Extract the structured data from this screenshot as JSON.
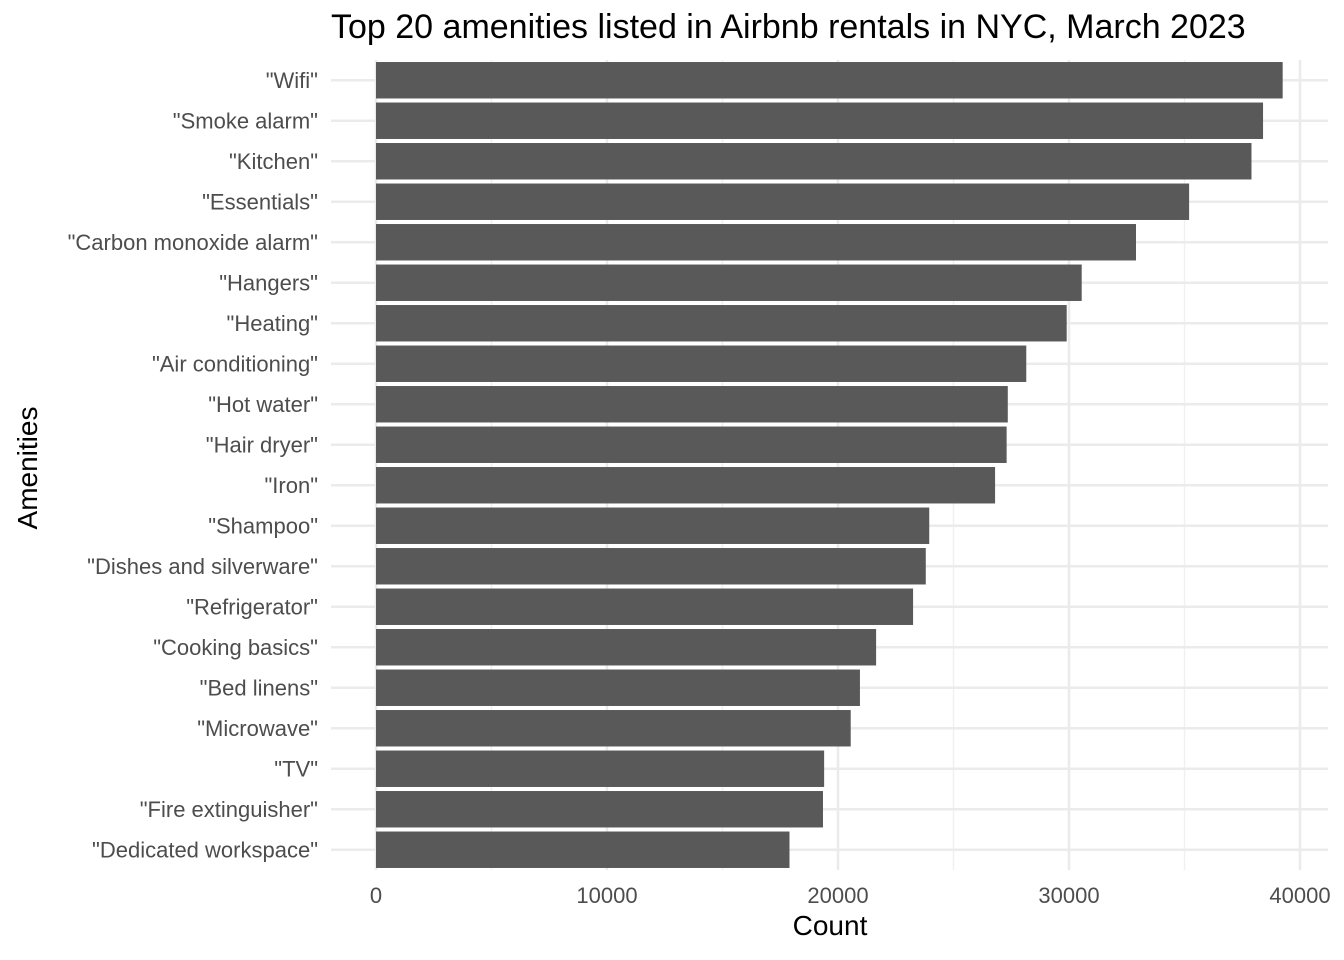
{
  "chart_data": {
    "type": "bar",
    "orientation": "horizontal",
    "title": "Top 20 amenities listed in Airbnb rentals in NYC, March 2023",
    "xlabel": "Count",
    "ylabel": "Amenities",
    "xlim": [
      0,
      40000
    ],
    "x_ticks": [
      0,
      10000,
      20000,
      30000,
      40000
    ],
    "grid": true,
    "bar_color": "#595959",
    "categories": [
      "\"Wifi\"",
      "\"Smoke alarm\"",
      "\"Kitchen\"",
      "\"Essentials\"",
      "\"Carbon monoxide alarm\"",
      "\"Hangers\"",
      "\"Heating\"",
      "\"Air conditioning\"",
      "\"Hot water\"",
      "\"Hair dryer\"",
      "\"Iron\"",
      "\"Shampoo\"",
      "\"Dishes and silverware\"",
      "\"Refrigerator\"",
      "\"Cooking basics\"",
      "\"Bed linens\"",
      "\"Microwave\"",
      "\"TV\"",
      "\"Fire extinguisher\"",
      "\"Dedicated workspace\""
    ],
    "values": [
      39250,
      38400,
      37900,
      35200,
      32900,
      30550,
      29900,
      28150,
      27350,
      27300,
      26800,
      23950,
      23800,
      23250,
      21650,
      20950,
      20550,
      19400,
      19350,
      17900
    ]
  }
}
